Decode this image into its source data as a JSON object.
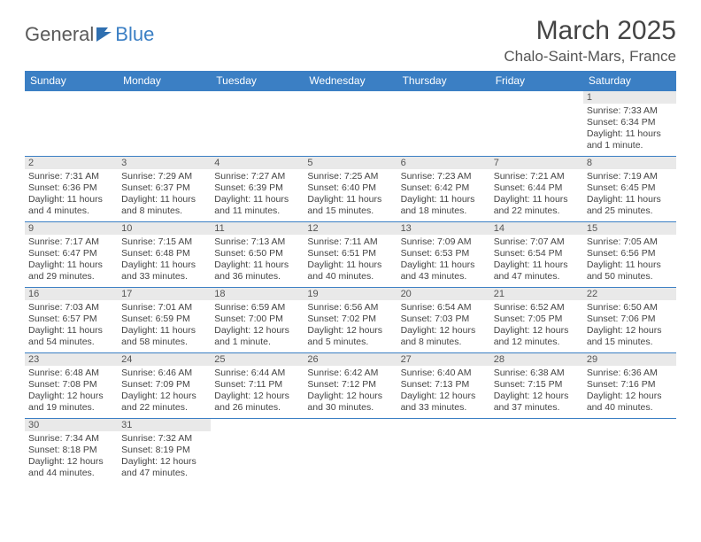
{
  "logo": {
    "text1": "General",
    "text2": "Blue"
  },
  "title": "March 2025",
  "location": "Chalo-Saint-Mars, France",
  "colors": {
    "header_bg": "#3b7fc4",
    "header_text": "#ffffff",
    "daynum_bg": "#e9e9e9",
    "border": "#3b7fc4",
    "page_bg": "#ffffff",
    "body_text": "#444444"
  },
  "day_headers": [
    "Sunday",
    "Monday",
    "Tuesday",
    "Wednesday",
    "Thursday",
    "Friday",
    "Saturday"
  ],
  "weeks": [
    [
      {
        "n": "",
        "sunrise": "",
        "sunset": "",
        "daylight": ""
      },
      {
        "n": "",
        "sunrise": "",
        "sunset": "",
        "daylight": ""
      },
      {
        "n": "",
        "sunrise": "",
        "sunset": "",
        "daylight": ""
      },
      {
        "n": "",
        "sunrise": "",
        "sunset": "",
        "daylight": ""
      },
      {
        "n": "",
        "sunrise": "",
        "sunset": "",
        "daylight": ""
      },
      {
        "n": "",
        "sunrise": "",
        "sunset": "",
        "daylight": ""
      },
      {
        "n": "1",
        "sunrise": "Sunrise: 7:33 AM",
        "sunset": "Sunset: 6:34 PM",
        "daylight": "Daylight: 11 hours and 1 minute."
      }
    ],
    [
      {
        "n": "2",
        "sunrise": "Sunrise: 7:31 AM",
        "sunset": "Sunset: 6:36 PM",
        "daylight": "Daylight: 11 hours and 4 minutes."
      },
      {
        "n": "3",
        "sunrise": "Sunrise: 7:29 AM",
        "sunset": "Sunset: 6:37 PM",
        "daylight": "Daylight: 11 hours and 8 minutes."
      },
      {
        "n": "4",
        "sunrise": "Sunrise: 7:27 AM",
        "sunset": "Sunset: 6:39 PM",
        "daylight": "Daylight: 11 hours and 11 minutes."
      },
      {
        "n": "5",
        "sunrise": "Sunrise: 7:25 AM",
        "sunset": "Sunset: 6:40 PM",
        "daylight": "Daylight: 11 hours and 15 minutes."
      },
      {
        "n": "6",
        "sunrise": "Sunrise: 7:23 AM",
        "sunset": "Sunset: 6:42 PM",
        "daylight": "Daylight: 11 hours and 18 minutes."
      },
      {
        "n": "7",
        "sunrise": "Sunrise: 7:21 AM",
        "sunset": "Sunset: 6:44 PM",
        "daylight": "Daylight: 11 hours and 22 minutes."
      },
      {
        "n": "8",
        "sunrise": "Sunrise: 7:19 AM",
        "sunset": "Sunset: 6:45 PM",
        "daylight": "Daylight: 11 hours and 25 minutes."
      }
    ],
    [
      {
        "n": "9",
        "sunrise": "Sunrise: 7:17 AM",
        "sunset": "Sunset: 6:47 PM",
        "daylight": "Daylight: 11 hours and 29 minutes."
      },
      {
        "n": "10",
        "sunrise": "Sunrise: 7:15 AM",
        "sunset": "Sunset: 6:48 PM",
        "daylight": "Daylight: 11 hours and 33 minutes."
      },
      {
        "n": "11",
        "sunrise": "Sunrise: 7:13 AM",
        "sunset": "Sunset: 6:50 PM",
        "daylight": "Daylight: 11 hours and 36 minutes."
      },
      {
        "n": "12",
        "sunrise": "Sunrise: 7:11 AM",
        "sunset": "Sunset: 6:51 PM",
        "daylight": "Daylight: 11 hours and 40 minutes."
      },
      {
        "n": "13",
        "sunrise": "Sunrise: 7:09 AM",
        "sunset": "Sunset: 6:53 PM",
        "daylight": "Daylight: 11 hours and 43 minutes."
      },
      {
        "n": "14",
        "sunrise": "Sunrise: 7:07 AM",
        "sunset": "Sunset: 6:54 PM",
        "daylight": "Daylight: 11 hours and 47 minutes."
      },
      {
        "n": "15",
        "sunrise": "Sunrise: 7:05 AM",
        "sunset": "Sunset: 6:56 PM",
        "daylight": "Daylight: 11 hours and 50 minutes."
      }
    ],
    [
      {
        "n": "16",
        "sunrise": "Sunrise: 7:03 AM",
        "sunset": "Sunset: 6:57 PM",
        "daylight": "Daylight: 11 hours and 54 minutes."
      },
      {
        "n": "17",
        "sunrise": "Sunrise: 7:01 AM",
        "sunset": "Sunset: 6:59 PM",
        "daylight": "Daylight: 11 hours and 58 minutes."
      },
      {
        "n": "18",
        "sunrise": "Sunrise: 6:59 AM",
        "sunset": "Sunset: 7:00 PM",
        "daylight": "Daylight: 12 hours and 1 minute."
      },
      {
        "n": "19",
        "sunrise": "Sunrise: 6:56 AM",
        "sunset": "Sunset: 7:02 PM",
        "daylight": "Daylight: 12 hours and 5 minutes."
      },
      {
        "n": "20",
        "sunrise": "Sunrise: 6:54 AM",
        "sunset": "Sunset: 7:03 PM",
        "daylight": "Daylight: 12 hours and 8 minutes."
      },
      {
        "n": "21",
        "sunrise": "Sunrise: 6:52 AM",
        "sunset": "Sunset: 7:05 PM",
        "daylight": "Daylight: 12 hours and 12 minutes."
      },
      {
        "n": "22",
        "sunrise": "Sunrise: 6:50 AM",
        "sunset": "Sunset: 7:06 PM",
        "daylight": "Daylight: 12 hours and 15 minutes."
      }
    ],
    [
      {
        "n": "23",
        "sunrise": "Sunrise: 6:48 AM",
        "sunset": "Sunset: 7:08 PM",
        "daylight": "Daylight: 12 hours and 19 minutes."
      },
      {
        "n": "24",
        "sunrise": "Sunrise: 6:46 AM",
        "sunset": "Sunset: 7:09 PM",
        "daylight": "Daylight: 12 hours and 22 minutes."
      },
      {
        "n": "25",
        "sunrise": "Sunrise: 6:44 AM",
        "sunset": "Sunset: 7:11 PM",
        "daylight": "Daylight: 12 hours and 26 minutes."
      },
      {
        "n": "26",
        "sunrise": "Sunrise: 6:42 AM",
        "sunset": "Sunset: 7:12 PM",
        "daylight": "Daylight: 12 hours and 30 minutes."
      },
      {
        "n": "27",
        "sunrise": "Sunrise: 6:40 AM",
        "sunset": "Sunset: 7:13 PM",
        "daylight": "Daylight: 12 hours and 33 minutes."
      },
      {
        "n": "28",
        "sunrise": "Sunrise: 6:38 AM",
        "sunset": "Sunset: 7:15 PM",
        "daylight": "Daylight: 12 hours and 37 minutes."
      },
      {
        "n": "29",
        "sunrise": "Sunrise: 6:36 AM",
        "sunset": "Sunset: 7:16 PM",
        "daylight": "Daylight: 12 hours and 40 minutes."
      }
    ],
    [
      {
        "n": "30",
        "sunrise": "Sunrise: 7:34 AM",
        "sunset": "Sunset: 8:18 PM",
        "daylight": "Daylight: 12 hours and 44 minutes."
      },
      {
        "n": "31",
        "sunrise": "Sunrise: 7:32 AM",
        "sunset": "Sunset: 8:19 PM",
        "daylight": "Daylight: 12 hours and 47 minutes."
      },
      {
        "n": "",
        "sunrise": "",
        "sunset": "",
        "daylight": ""
      },
      {
        "n": "",
        "sunrise": "",
        "sunset": "",
        "daylight": ""
      },
      {
        "n": "",
        "sunrise": "",
        "sunset": "",
        "daylight": ""
      },
      {
        "n": "",
        "sunrise": "",
        "sunset": "",
        "daylight": ""
      },
      {
        "n": "",
        "sunrise": "",
        "sunset": "",
        "daylight": ""
      }
    ]
  ]
}
